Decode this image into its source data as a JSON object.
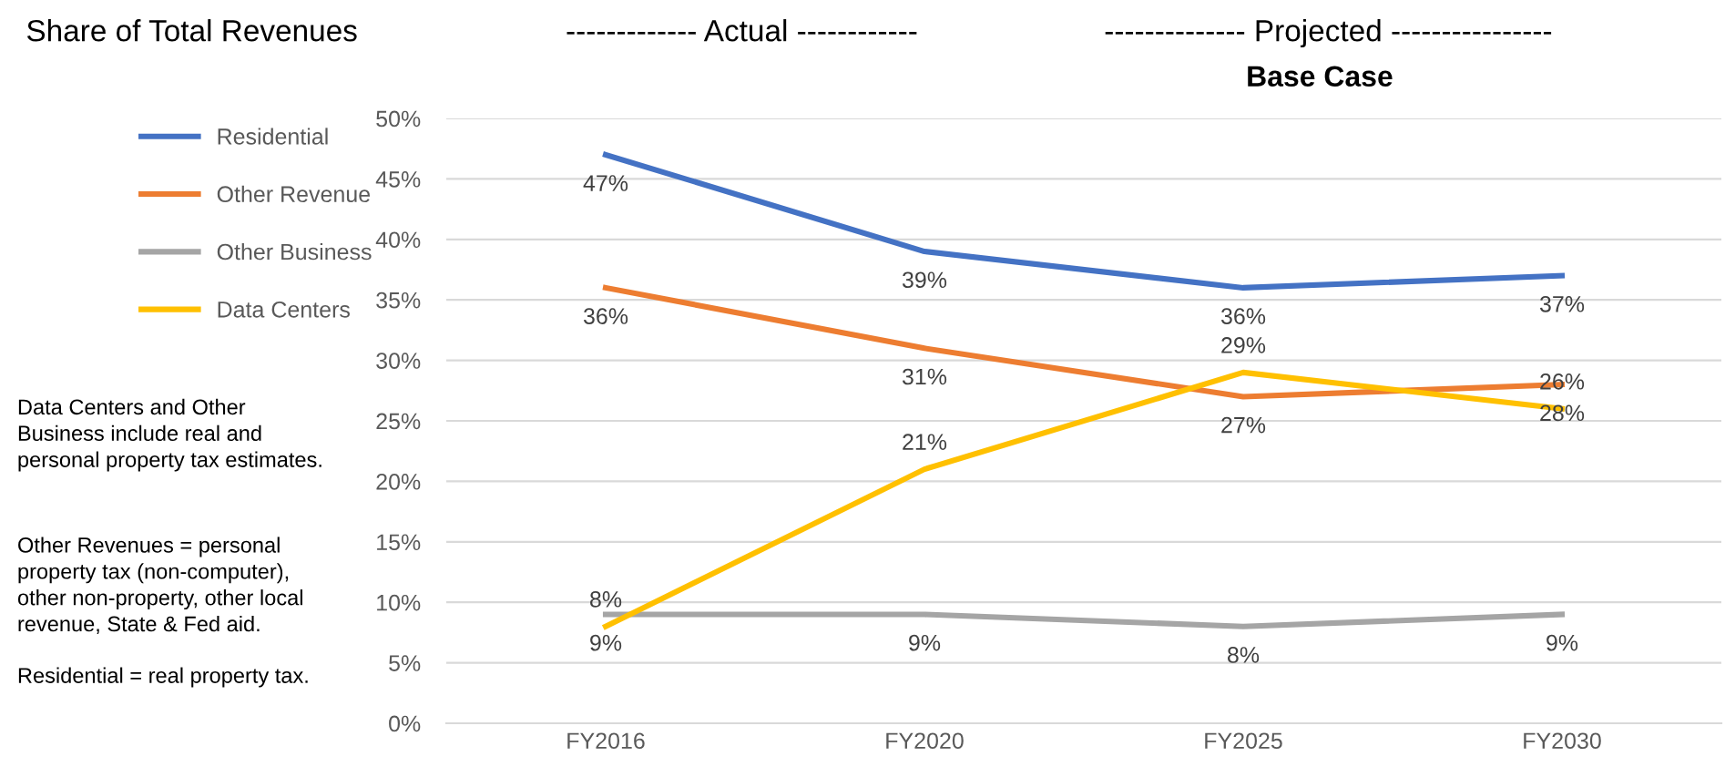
{
  "chart_data": {
    "type": "line",
    "title": "Share of Total Revenues",
    "categories": [
      "FY2016",
      "FY2020",
      "FY2025",
      "FY2030"
    ],
    "series": [
      {
        "name": "Residential",
        "color": "#4472c4",
        "values": [
          47,
          39,
          36,
          37
        ]
      },
      {
        "name": "Other Revenue",
        "color": "#ed7d31",
        "values": [
          36,
          31,
          27,
          28
        ]
      },
      {
        "name": "Other Business",
        "color": "#a5a5a5",
        "values": [
          9,
          9,
          8,
          9
        ]
      },
      {
        "name": "Data Centers",
        "color": "#ffc000",
        "values": [
          8,
          21,
          29,
          26
        ]
      }
    ],
    "ylim": [
      0,
      50
    ],
    "yticks": [
      {
        "value": 0,
        "label": "0%"
      },
      {
        "value": 5,
        "label": "5%"
      },
      {
        "value": 10,
        "label": "10%"
      },
      {
        "value": 15,
        "label": "15%"
      },
      {
        "value": 20,
        "label": "20%"
      },
      {
        "value": 25,
        "label": "25%"
      },
      {
        "value": 30,
        "label": "30%"
      },
      {
        "value": 35,
        "label": "35%"
      },
      {
        "value": 40,
        "label": "40%"
      },
      {
        "value": 45,
        "label": "45%"
      },
      {
        "value": 50,
        "label": "50%"
      }
    ],
    "value_labels": [
      [
        "47%",
        "39%",
        "36%",
        "37%"
      ],
      [
        "36%",
        "31%",
        "27%",
        "28%"
      ],
      [
        "9%",
        "9%",
        "8%",
        "9%"
      ],
      [
        "8%",
        "21%",
        "29%",
        "26%"
      ]
    ],
    "grid": "y",
    "legend": "left",
    "marker": "none",
    "annotations": [
      "------------- Actual ------------",
      "-------------- Projected ----------------",
      "Base Case",
      "Data Centers and Other\nBusiness include real and\npersonal property tax estimates.",
      "Other Revenues = personal\nproperty tax (non-computer),\nother non-property, other local\nrevenue, State & Fed aid.",
      "Residential = real property tax."
    ]
  }
}
